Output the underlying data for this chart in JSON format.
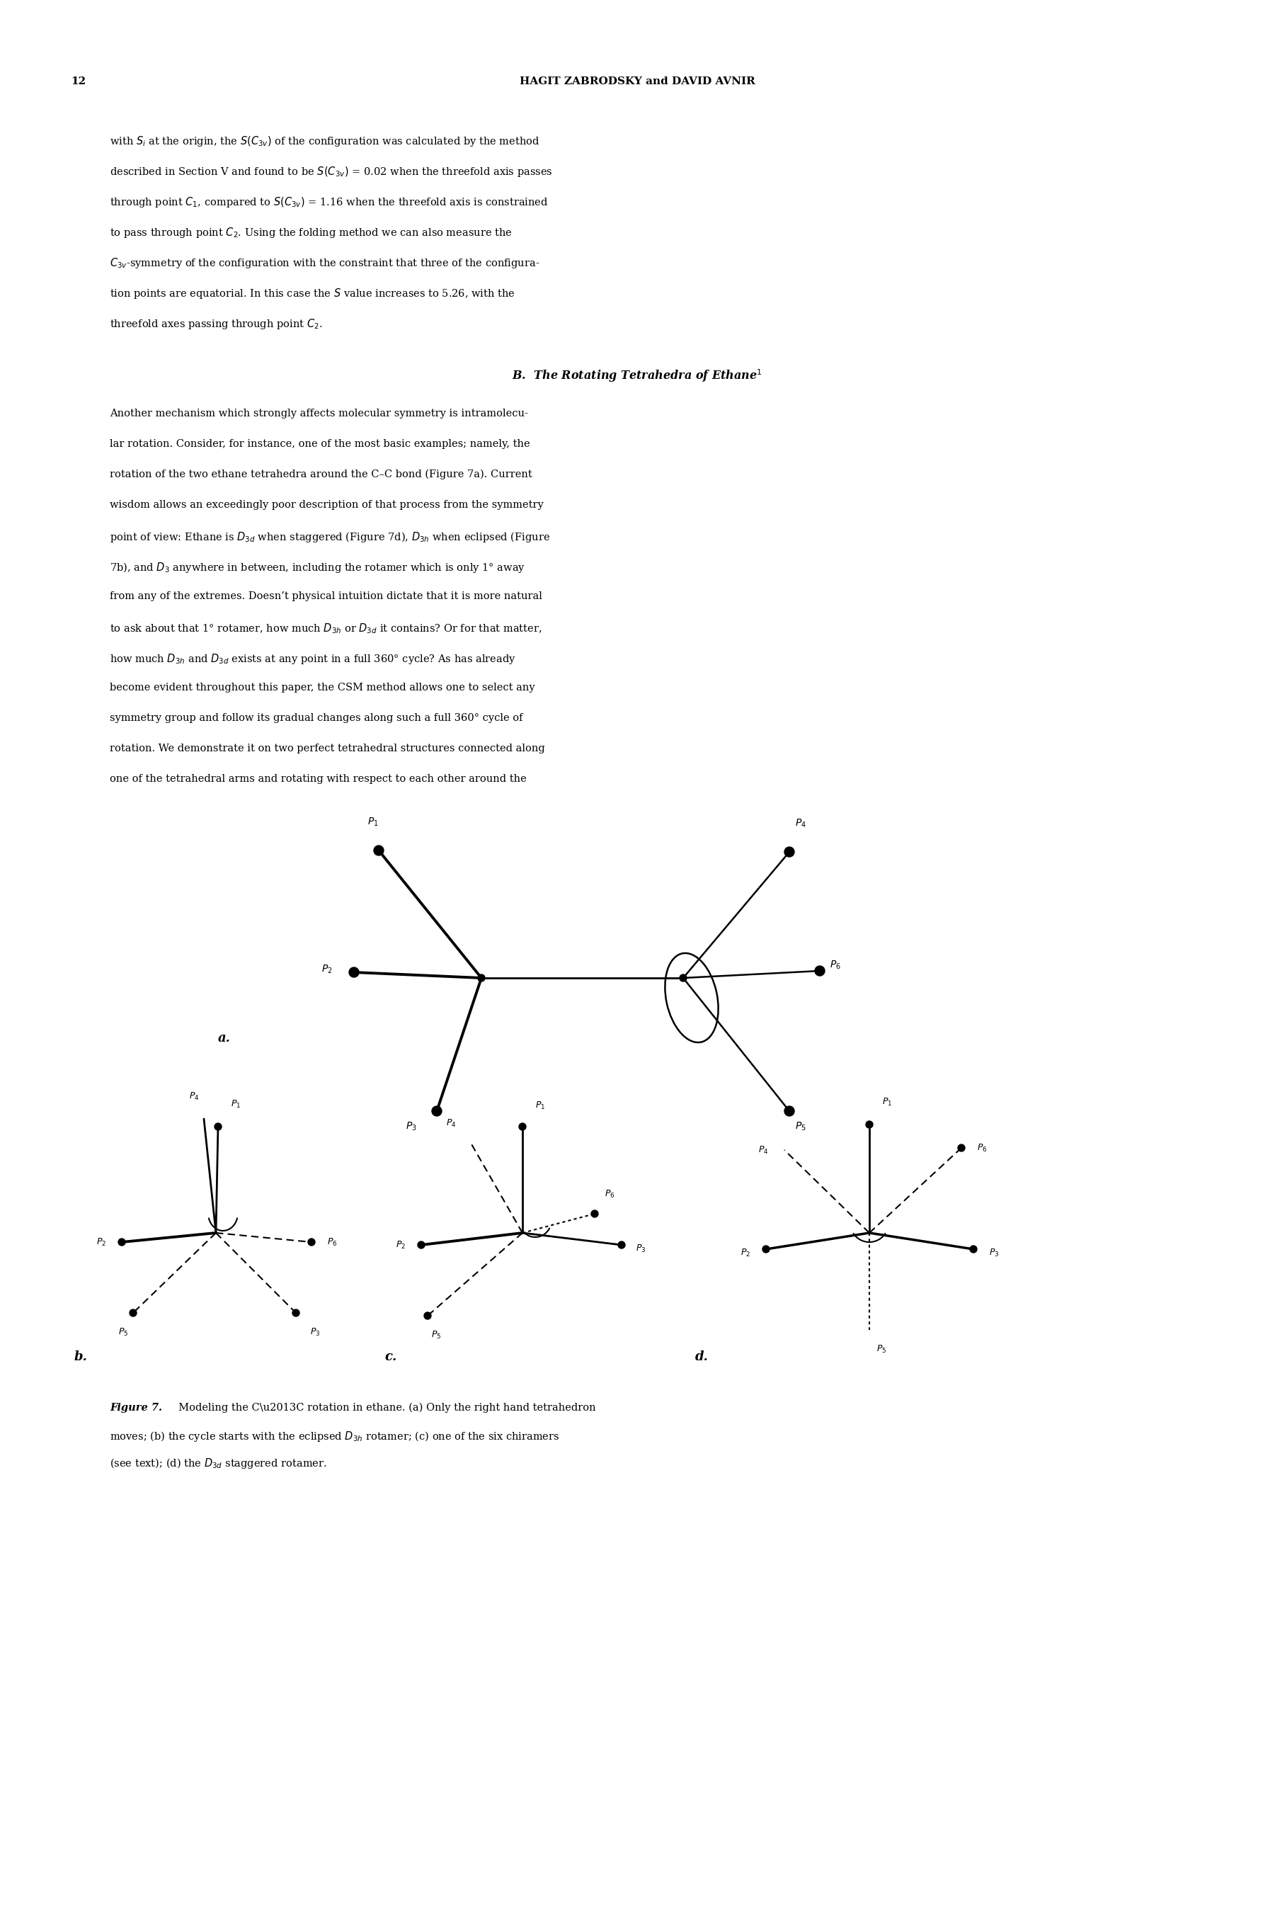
{
  "page_number": "12",
  "header": "HAGIT ZABRODSKY and DAVID AVNIR",
  "lines1": [
    "with $S_i$ at the origin, the $S(C_{3v})$ of the configuration was calculated by the method",
    "described in Section V and found to be $S(C_{3v})$ = 0.02 when the threefold axis passes",
    "through point $C_1$, compared to $S(C_{3v})$ = 1.16 when the threefold axis is constrained",
    "to pass through point $C_2$. Using the folding method we can also measure the",
    "$C_{3v}$-symmetry of the configuration with the constraint that three of the configura-",
    "tion points are equatorial. In this case the $S$ value increases to 5.26, with the",
    "threefold axes passing through point $C_2$."
  ],
  "section_title": "B.  The Rotating Tetrahedra of Ethane$^1$",
  "lines2": [
    "Another mechanism which strongly affects molecular symmetry is intramolecu-",
    "lar rotation. Consider, for instance, one of the most basic examples; namely, the",
    "rotation of the two ethane tetrahedra around the C–C bond (Figure 7a). Current",
    "wisdom allows an exceedingly poor description of that process from the symmetry",
    "point of view: Ethane is $D_{3d}$ when staggered (Figure 7d), $D_{3h}$ when eclipsed (Figure",
    "7b), and $D_3$ anywhere in between, including the rotamer which is only 1° away",
    "from any of the extremes. Doesn’t physical intuition dictate that it is more natural",
    "to ask about that 1° rotamer, how much $D_{3h}$ or $D_{3d}$ it contains? Or for that matter,",
    "how much $D_{3h}$ and $D_{3d}$ exists at any point in a full 360° cycle? As has already",
    "become evident throughout this paper, the CSM method allows one to select any",
    "symmetry group and follow its gradual changes along such a full 360° cycle of",
    "rotation. We demonstrate it on two perfect tetrahedral structures connected along",
    "one of the tetrahedral arms and rotating with respect to each other around the"
  ],
  "caption_lines": [
    "moves; (b) the cycle starts with the eclipsed $D_{3h}$ rotamer; (c) one of the six chiramers",
    "(see text); (d) the $D_{3d}$ staggered rotamer."
  ],
  "bg_color": "#ffffff"
}
